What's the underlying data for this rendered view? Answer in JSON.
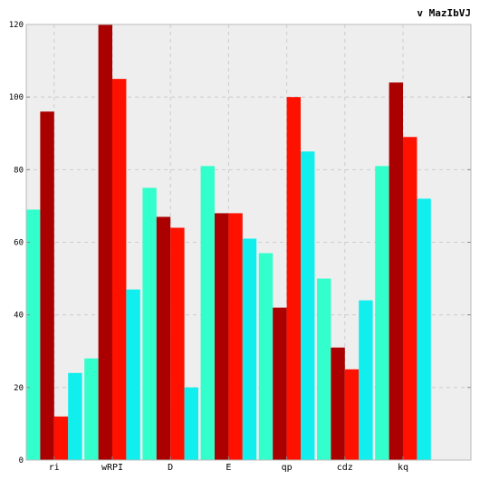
{
  "chart_data": {
    "type": "bar",
    "title": "v MazIbVJ",
    "xlabel": "",
    "ylabel": "",
    "ylim": [
      0,
      120
    ],
    "yticks": [
      0,
      20,
      40,
      60,
      80,
      100,
      120
    ],
    "grid": true,
    "categories": [
      "ri",
      "wRPI",
      "D",
      "E",
      "qp",
      "cdz",
      "kq"
    ],
    "series": [
      {
        "color": "#33ffcc",
        "values": [
          69,
          28,
          75,
          81,
          57,
          50,
          81
        ]
      },
      {
        "color": "#aa0000",
        "values": [
          96,
          120,
          67,
          68,
          42,
          31,
          104
        ]
      },
      {
        "color": "#ff1100",
        "values": [
          12,
          105,
          64,
          68,
          100,
          25,
          89
        ]
      },
      {
        "color": "#11eeee",
        "values": [
          24,
          47,
          20,
          61,
          85,
          44,
          72
        ]
      }
    ]
  }
}
